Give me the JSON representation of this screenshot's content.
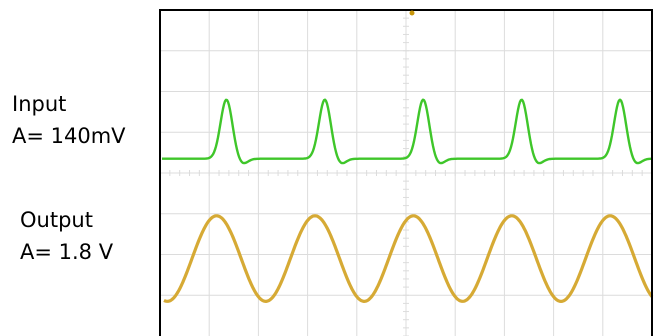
{
  "colors": {
    "input_trace": "#3fc62a",
    "output_trace": "#d4a52a",
    "grid": "#dcdcdc",
    "frame": "#000000",
    "marker": "#c8960a"
  },
  "labels": {
    "input_title": "Input",
    "input_amplitude": "A= 140mV",
    "output_title": "Output",
    "output_amplitude": "A= 1.8 V"
  },
  "chart_data": {
    "type": "line",
    "title": "",
    "xlabel": "",
    "ylabel": "",
    "grid": true,
    "grid_divisions": {
      "x": 10,
      "y": 8
    },
    "xlim": [
      0,
      10
    ],
    "series": [
      {
        "name": "Input",
        "amplitude_text": "A= 140mV",
        "shape": "periodic pulse",
        "baseline_div": 0.35,
        "pulse_height_div": 1.45,
        "period_div": 2.0,
        "peaks_x_div": [
          1.35,
          3.35,
          5.35,
          7.35,
          9.35
        ],
        "color": "#3fc62a"
      },
      {
        "name": "Output",
        "amplitude_text": "A= 1.8 V",
        "shape": "sine",
        "center_div": -2.1,
        "amplitude_div": 1.05,
        "period_div": 2.0,
        "crests_x_div": [
          1.15,
          3.15,
          5.15,
          7.15,
          9.15
        ],
        "color": "#d4a52a"
      }
    ]
  }
}
